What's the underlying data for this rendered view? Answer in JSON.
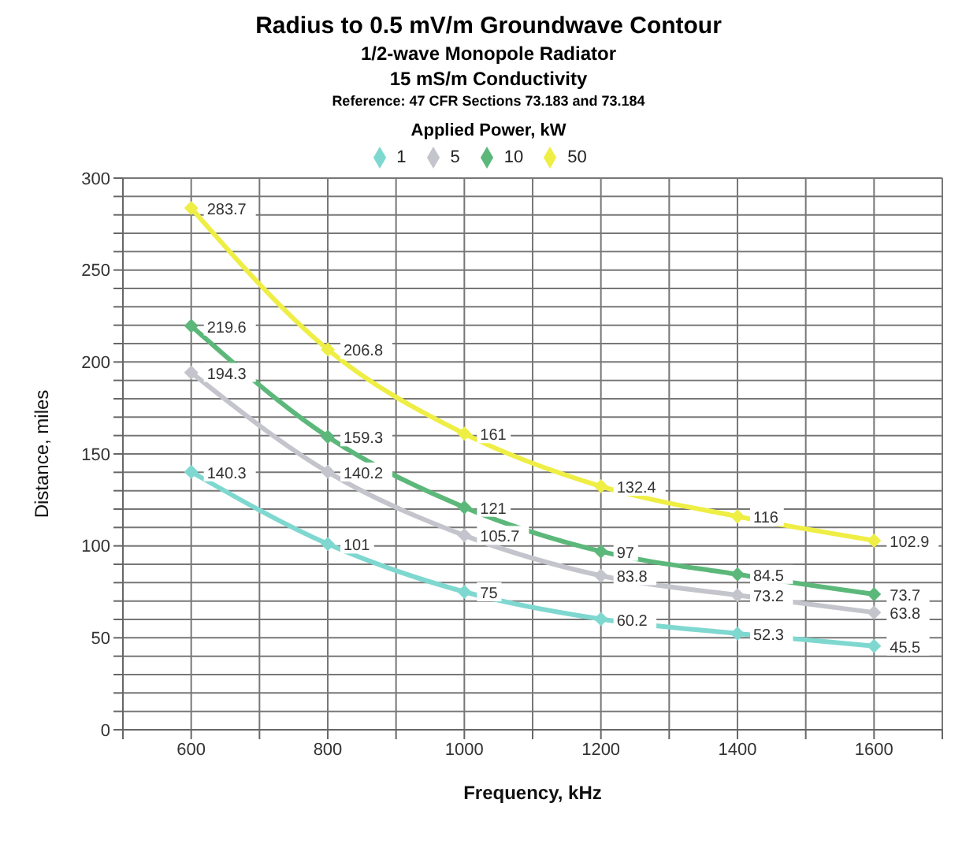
{
  "chart_data": {
    "type": "line",
    "title": "Radius to 0.5 mV/m Groundwave Contour",
    "subtitle": "1/2-wave Monopole Radiator\n15 mS/m Conductivity\nReference: 47 CFR Sections 73.183 and 73.184",
    "xlabel": "Frequency, kHz",
    "ylabel": "Distance, miles",
    "legend_title": "Applied Power, kW",
    "x": [
      600,
      800,
      1000,
      1200,
      1400,
      1600
    ],
    "series": [
      {
        "name": "1",
        "color": "#7fd8d0",
        "values": [
          140.3,
          101,
          75,
          60.2,
          52.3,
          45.5
        ]
      },
      {
        "name": "5",
        "color": "#c4c4cc",
        "values": [
          194.3,
          140.2,
          105.7,
          83.8,
          73.2,
          63.8
        ]
      },
      {
        "name": "10",
        "color": "#5cb87a",
        "values": [
          219.6,
          159.3,
          121,
          97,
          84.5,
          73.7
        ]
      },
      {
        "name": "50",
        "color": "#eeee44",
        "values": [
          283.7,
          206.8,
          161,
          132.4,
          116,
          102.9
        ]
      }
    ],
    "xlim": [
      500,
      1700
    ],
    "xticks": [
      {
        "value": 500,
        "label": null
      },
      600,
      {
        "value": 700,
        "label": null
      },
      800,
      {
        "value": 900,
        "label": null
      },
      1000,
      {
        "value": 1100,
        "label": null
      },
      1200,
      {
        "value": 1300,
        "label": null
      },
      1400,
      {
        "value": 1500,
        "label": null
      },
      1600,
      {
        "value": 1700,
        "label": null
      }
    ],
    "ylim": [
      0,
      300
    ],
    "yticks": [
      0,
      {
        "value": 10,
        "label": null
      },
      {
        "value": 20,
        "label": null
      },
      {
        "value": 30,
        "label": null
      },
      {
        "value": 40,
        "label": null
      },
      50,
      {
        "value": 60,
        "label": null
      },
      {
        "value": 70,
        "label": null
      },
      {
        "value": 80,
        "label": null
      },
      {
        "value": 90,
        "label": null
      },
      100,
      {
        "value": 110,
        "label": null
      },
      {
        "value": 120,
        "label": null
      },
      {
        "value": 130,
        "label": null
      },
      {
        "value": 140,
        "label": null
      },
      150,
      {
        "value": 160,
        "label": null
      },
      {
        "value": 170,
        "label": null
      },
      {
        "value": 180,
        "label": null
      },
      {
        "value": 190,
        "label": null
      },
      200,
      {
        "value": 210,
        "label": null
      },
      {
        "value": 220,
        "label": null
      },
      {
        "value": 230,
        "label": null
      },
      {
        "value": 240,
        "label": null
      },
      250,
      {
        "value": 260,
        "label": null
      },
      {
        "value": 270,
        "label": null
      },
      {
        "value": 280,
        "label": null
      },
      {
        "value": 290,
        "label": null
      },
      300
    ],
    "grid": true,
    "legend": "top",
    "marker": "diamond",
    "line_style": "solid",
    "data_labels": true
  }
}
